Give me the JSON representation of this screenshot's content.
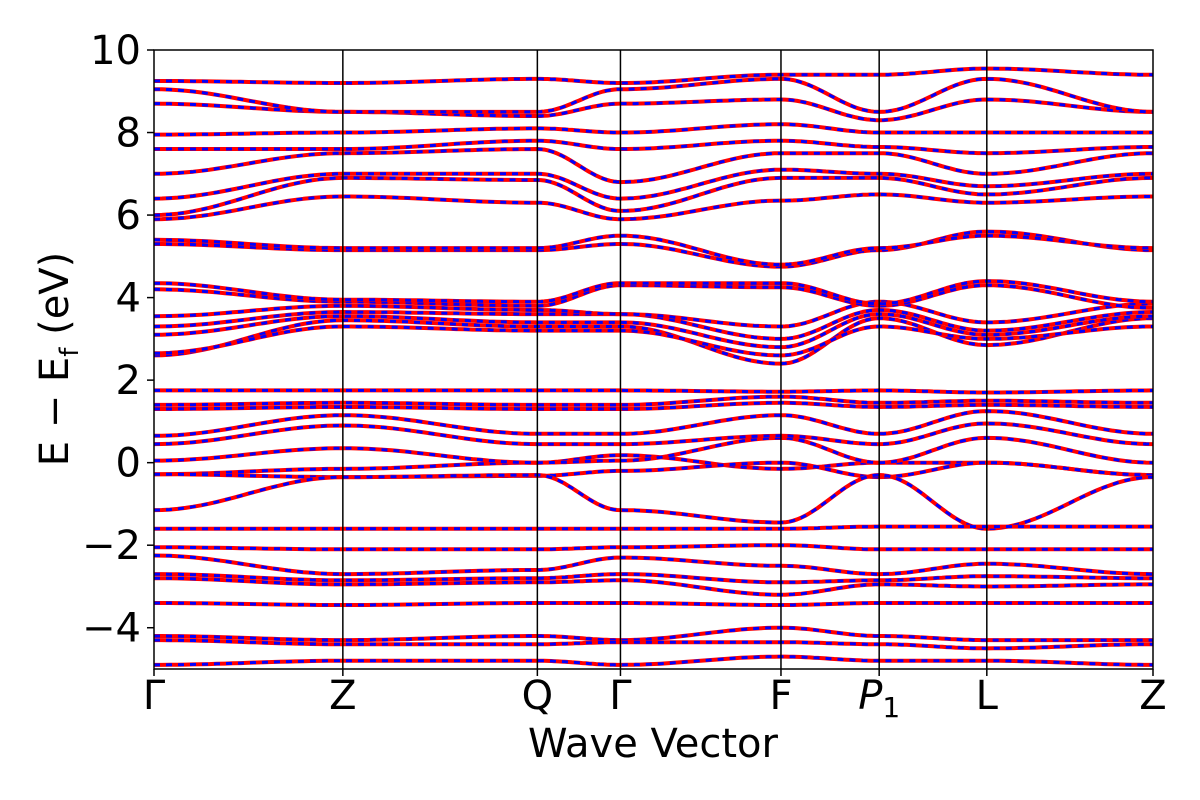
{
  "chart_data": {
    "type": "line",
    "title": "",
    "xlabel": "Wave Vector",
    "ylabel": "E − E_f (eV)",
    "ylabel_parts": {
      "main": "E − E",
      "sub": "f",
      "unit": "(eV)"
    },
    "ylim": [
      -5,
      10
    ],
    "y_ticks": [
      {
        "value": -4,
        "label": "−4"
      },
      {
        "value": -2,
        "label": "−2"
      },
      {
        "value": 0,
        "label": "0"
      },
      {
        "value": 2,
        "label": "2"
      },
      {
        "value": 4,
        "label": "4"
      },
      {
        "value": 6,
        "label": "6"
      },
      {
        "value": 8,
        "label": "8"
      },
      {
        "value": 10,
        "label": "10"
      }
    ],
    "k_points": [
      {
        "label": "Γ",
        "pos": 0.0
      },
      {
        "label": "Z",
        "pos": 1.0
      },
      {
        "label": "Q",
        "pos": 2.03
      },
      {
        "label": "Γ",
        "pos": 2.47
      },
      {
        "label": "F",
        "pos": 3.32
      },
      {
        "label": "P",
        "sub": "1",
        "italic": true,
        "pos": 3.84
      },
      {
        "label": "L",
        "pos": 4.41
      },
      {
        "label": "Z",
        "pos": 5.29
      }
    ],
    "grid": false,
    "legend": "none",
    "series_styles": [
      {
        "color": "#ff0000",
        "style": "solid"
      },
      {
        "color": "#0000ff",
        "style": "dashed"
      }
    ],
    "bands": [
      [
        -0.28,
        -0.15,
        0.0,
        0.18,
        -0.15,
        0.0,
        0.0,
        -0.3
      ],
      [
        -0.28,
        -0.35,
        -0.32,
        -0.2,
        0.0,
        -0.35,
        0.0,
        -0.3
      ],
      [
        0.05,
        0.35,
        0.0,
        0.05,
        0.6,
        0.0,
        0.6,
        0.0
      ],
      [
        0.45,
        0.9,
        0.45,
        0.45,
        0.65,
        0.45,
        0.95,
        0.45
      ],
      [
        0.65,
        1.15,
        0.7,
        0.7,
        1.15,
        0.7,
        1.25,
        0.7
      ],
      [
        1.3,
        1.35,
        1.3,
        1.3,
        1.45,
        1.35,
        1.4,
        1.35
      ],
      [
        1.4,
        1.45,
        1.4,
        1.4,
        1.6,
        1.45,
        1.5,
        1.45
      ],
      [
        1.75,
        1.75,
        1.75,
        1.75,
        1.72,
        1.75,
        1.7,
        1.75
      ],
      [
        2.6,
        3.45,
        3.3,
        3.3,
        2.4,
        3.5,
        2.85,
        3.5
      ],
      [
        2.65,
        3.3,
        3.2,
        3.2,
        2.6,
        3.3,
        3.0,
        3.3
      ],
      [
        3.1,
        3.55,
        3.4,
        3.4,
        2.8,
        3.6,
        3.1,
        3.55
      ],
      [
        3.3,
        3.65,
        3.6,
        3.6,
        3.0,
        3.7,
        3.2,
        3.65
      ],
      [
        3.55,
        3.8,
        3.7,
        3.6,
        3.3,
        3.9,
        3.4,
        3.85
      ],
      [
        4.2,
        3.9,
        3.8,
        4.3,
        4.25,
        3.8,
        4.3,
        3.75
      ],
      [
        4.35,
        3.95,
        3.9,
        4.35,
        4.35,
        3.85,
        4.4,
        3.9
      ],
      [
        5.3,
        5.15,
        5.15,
        5.3,
        4.75,
        5.15,
        5.6,
        5.15
      ],
      [
        5.4,
        5.2,
        5.2,
        5.5,
        4.8,
        5.2,
        5.5,
        5.2
      ],
      [
        5.9,
        6.45,
        6.3,
        5.9,
        6.35,
        6.5,
        6.3,
        6.45
      ],
      [
        6.0,
        6.9,
        6.85,
        6.1,
        6.9,
        6.9,
        6.5,
        6.9
      ],
      [
        6.4,
        7.0,
        7.0,
        6.4,
        7.1,
        7.0,
        6.7,
        7.0
      ],
      [
        7.0,
        7.5,
        7.6,
        6.8,
        7.5,
        7.5,
        7.0,
        7.5
      ],
      [
        7.6,
        7.6,
        7.8,
        7.6,
        7.8,
        7.65,
        7.5,
        7.65
      ],
      [
        7.95,
        8.0,
        8.1,
        8.0,
        8.2,
        8.0,
        8.0,
        8.0
      ],
      [
        8.7,
        8.5,
        8.4,
        8.7,
        8.8,
        8.3,
        8.8,
        8.5
      ],
      [
        9.05,
        8.5,
        8.5,
        9.05,
        9.3,
        8.5,
        9.3,
        8.5
      ],
      [
        9.25,
        9.2,
        9.3,
        9.2,
        9.4,
        9.4,
        9.55,
        9.4
      ],
      [
        -1.15,
        -0.35,
        -0.3,
        -1.15,
        -1.45,
        -0.3,
        -1.6,
        -0.35
      ],
      [
        -1.6,
        -1.6,
        -1.6,
        -1.6,
        -1.6,
        -1.55,
        -1.55,
        -1.55
      ],
      [
        -2.05,
        -2.1,
        -2.1,
        -2.05,
        -2.0,
        -2.1,
        -2.1,
        -2.1
      ],
      [
        -2.25,
        -2.7,
        -2.6,
        -2.3,
        -2.5,
        -2.7,
        -2.45,
        -2.7
      ],
      [
        -2.7,
        -2.85,
        -2.8,
        -2.7,
        -2.9,
        -2.85,
        -2.75,
        -2.8
      ],
      [
        -2.8,
        -2.95,
        -2.9,
        -2.85,
        -3.2,
        -2.95,
        -3.0,
        -2.95
      ],
      [
        -3.4,
        -3.45,
        -3.4,
        -3.4,
        -3.45,
        -3.4,
        -3.4,
        -3.4
      ],
      [
        -4.2,
        -4.3,
        -4.2,
        -4.3,
        -4.0,
        -4.2,
        -4.3,
        -4.3
      ],
      [
        -4.3,
        -4.4,
        -4.4,
        -4.35,
        -4.35,
        -4.4,
        -4.5,
        -4.4
      ],
      [
        -4.9,
        -4.8,
        -4.8,
        -4.9,
        -4.7,
        -4.8,
        -4.8,
        -4.9
      ]
    ]
  }
}
